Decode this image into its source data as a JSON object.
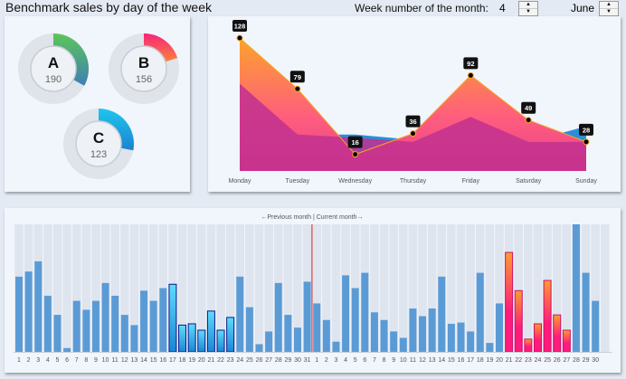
{
  "header": {
    "title": "Benchmark sales by day of the week",
    "week_label": "Week number of the month:",
    "week_value": "4",
    "month": "June"
  },
  "donuts": [
    {
      "label": "A",
      "value": "190",
      "fraction": 0.33,
      "colors": [
        "#5bc65a",
        "#3f7fb4"
      ]
    },
    {
      "label": "B",
      "value": "156",
      "fraction": 0.2,
      "colors": [
        "#f7257a",
        "#fb9a2e"
      ]
    },
    {
      "label": "C",
      "value": "123",
      "fraction": 0.28,
      "colors": [
        "#1fc6ee",
        "#1a82d0"
      ]
    }
  ],
  "chart_data": [
    {
      "type": "area",
      "categories": [
        "Monday",
        "Tuesday",
        "Wednesday",
        "Thursday",
        "Friday",
        "Saturday",
        "Sunday"
      ],
      "series": [
        {
          "values": [
            128,
            79,
            16,
            36,
            92,
            49,
            28
          ],
          "color": "#fb9a2e",
          "labeled": true
        },
        {
          "values": [
            84,
            35,
            35,
            30,
            52,
            28,
            43
          ],
          "color": "#2a8fd6"
        },
        {
          "values": [
            84,
            35,
            32,
            28,
            52,
            28,
            28
          ],
          "color": "#c2308f"
        }
      ],
      "ylim": [
        0,
        128
      ]
    },
    {
      "type": "bar",
      "annotation": "←Previous month | Current month→",
      "previous_month": {
        "days": [
          "1",
          "2",
          "3",
          "4",
          "5",
          "6",
          "7",
          "8",
          "9",
          "10",
          "11",
          "12",
          "13",
          "14",
          "15",
          "16",
          "17",
          "18",
          "19",
          "20",
          "21",
          "22",
          "23",
          "24",
          "25",
          "26",
          "27",
          "28",
          "29",
          "30",
          "31"
        ],
        "values": [
          59,
          63,
          71,
          44,
          29,
          3,
          40,
          33,
          40,
          54,
          44,
          29,
          21,
          48,
          40,
          50,
          53,
          21,
          22,
          17,
          32,
          17,
          27,
          59,
          35,
          6,
          16,
          54,
          29,
          19,
          55
        ],
        "highlighted": [
          "17",
          "18",
          "19",
          "20",
          "21",
          "22",
          "23"
        ]
      },
      "current_month": {
        "days": [
          "1",
          "2",
          "3",
          "4",
          "5",
          "6",
          "7",
          "8",
          "9",
          "10",
          "11",
          "12",
          "13",
          "14",
          "15",
          "16",
          "17",
          "18",
          "19",
          "20",
          "21",
          "22",
          "23",
          "24",
          "25",
          "26",
          "27",
          "28",
          "29",
          "30"
        ],
        "values": [
          38,
          25,
          8,
          60,
          50,
          62,
          31,
          25,
          16,
          11,
          34,
          28,
          34,
          59,
          22,
          23,
          16,
          62,
          7,
          38,
          78,
          48,
          10,
          22,
          56,
          29,
          17,
          100,
          62,
          40
        ],
        "highlighted": [
          "21",
          "22",
          "23",
          "24",
          "25",
          "26",
          "27"
        ]
      },
      "ylim": [
        0,
        100
      ]
    }
  ]
}
